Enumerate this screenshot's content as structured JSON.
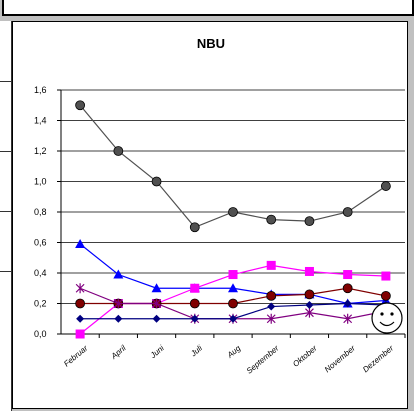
{
  "colors": {
    "background": "#ffffff",
    "window": "#c0c0c0",
    "grid": "#000000"
  },
  "chart_data": {
    "type": "line",
    "title": "NBU",
    "xlabel": "",
    "ylabel": "",
    "ylim": [
      0,
      1.6
    ],
    "yticks": [
      "0,0",
      "0,2",
      "0,4",
      "0,6",
      "0,8",
      "1,0",
      "1,2",
      "1,4",
      "1,6"
    ],
    "grid": "horizontal",
    "legend": "none",
    "categories": [
      "Februar",
      "April",
      "Juni",
      "Juli",
      "Aug",
      "September",
      "Oktober",
      "November",
      "Dezember"
    ],
    "series": [
      {
        "color": "#505050",
        "marker": "circle",
        "values": [
          1.5,
          1.2,
          1.0,
          0.7,
          0.8,
          0.75,
          0.74,
          0.8,
          0.97
        ]
      },
      {
        "color": "#0000ff",
        "marker": "triangle",
        "values": [
          0.59,
          0.39,
          0.3,
          0.3,
          0.3,
          0.26,
          0.26,
          0.2,
          0.22
        ]
      },
      {
        "color": "#ff00ff",
        "marker": "square",
        "values": [
          0.0,
          0.2,
          0.2,
          0.3,
          0.39,
          0.45,
          0.41,
          0.39,
          0.38
        ]
      },
      {
        "color": "#800000",
        "marker": "circle",
        "values": [
          0.2,
          0.2,
          0.2,
          0.2,
          0.2,
          0.25,
          0.26,
          0.3,
          0.25
        ]
      },
      {
        "color": "#800080",
        "marker": "star",
        "values": [
          0.3,
          0.2,
          0.2,
          0.1,
          0.1,
          0.1,
          0.14,
          0.1,
          0.15
        ]
      },
      {
        "color": "#000080",
        "marker": "diamond",
        "values": [
          0.1,
          0.1,
          0.1,
          0.1,
          0.1,
          0.18,
          0.19,
          0.2,
          0.19
        ]
      }
    ]
  }
}
